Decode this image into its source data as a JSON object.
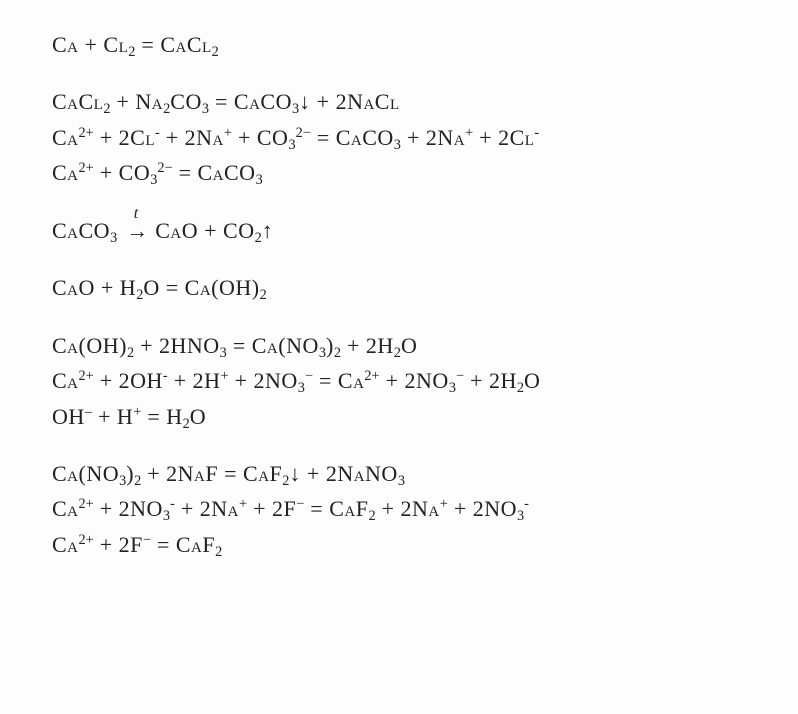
{
  "font_family": "Times New Roman",
  "font_size_pt": 22,
  "text_color": "#222222",
  "background_color": "#fdfdfd",
  "groups": [
    {
      "lines": [
        {
          "html": "Ca + Cl<sub>2</sub> = CaCl<sub>2</sub>"
        }
      ]
    },
    {
      "lines": [
        {
          "html": "CaCl<sub>2</sub> + Na<sub>2</sub>CO<sub>3</sub> = CaCO<sub>3</sub>↓ + 2NaCl"
        },
        {
          "html": "Ca<sup>2+</sup> + 2Cl<sup>-</sup> + 2Na<sup>+</sup> + CO<sub>3</sub><sup>2−</sup> = CaCO<sub>3</sub> + 2Na<sup>+</sup> + 2Cl<sup>-</sup>"
        },
        {
          "html": "Ca<sup>2+</sup> + CO<sub>3</sub><sup>2−</sup> = CaCO<sub>3</sub>"
        }
      ]
    },
    {
      "lines": [
        {
          "html": "CaCO<sub>3</sub> <span class=\"arrow-wrap\"><span class=\"arrow-top\">t</span><span class=\"arrow-body\">→</span></span> CaO + CO<sub>2</sub>↑"
        }
      ]
    },
    {
      "lines": [
        {
          "html": "CaO + H<sub>2</sub>O = Ca(OH)<sub>2</sub>"
        }
      ]
    },
    {
      "lines": [
        {
          "html": "Ca(OH)<sub>2</sub> + 2HNO<sub>3</sub> = Ca(NO<sub>3</sub>)<sub>2</sub> + 2H<sub>2</sub>O"
        },
        {
          "html": "Ca<sup>2+</sup> + 2OH<sup>-</sup> + 2H<sup>+</sup> + 2NO<sub>3</sub><sup>−</sup> = Ca<sup>2+</sup> + 2NO<sub>3</sub><sup>−</sup> + 2H<sub>2</sub>O"
        },
        {
          "html": "OH<sup>–</sup> + H<sup>+</sup> = H<sub>2</sub>O"
        }
      ]
    },
    {
      "lines": [
        {
          "html": "Ca(NO<sub>3</sub>)<sub>2</sub> + 2NaF = CaF<sub>2</sub>↓ + 2NaNO<sub>3</sub>"
        },
        {
          "html": "Ca<sup>2+</sup> + 2NO<sub>3</sub><sup>-</sup> + 2Na<sup>+</sup> + 2F<sup>−</sup> = CaF<sub>2</sub> + 2Na<sup>+</sup> + 2NO<sub>3</sub><sup>-</sup>"
        },
        {
          "html": "Ca<sup>2+</sup> + 2F<sup>−</sup> = CaF<sub>2</sub>"
        }
      ]
    }
  ]
}
